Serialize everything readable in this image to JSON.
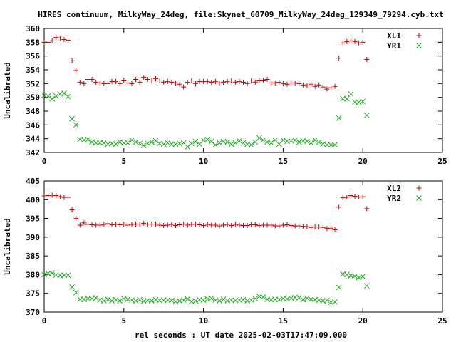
{
  "title": "HIRES continuum, MilkyWay_24deg, file:Skynet_60709_MilkyWay_24deg_129349_79294.cyb.txt",
  "xlabel": "rel seconds : UT date 2025-02-03T17:47:09.000",
  "colors": {
    "series1": "#cc0000",
    "series2": "#22aa22",
    "axis": "#000000"
  },
  "chart_data": [
    {
      "type": "scatter",
      "ylabel": "Uncalibrated",
      "xlim": [
        0,
        25
      ],
      "ylim": [
        342,
        360
      ],
      "xticks": [
        0,
        5,
        10,
        15,
        20,
        25
      ],
      "yticks": [
        342,
        344,
        346,
        348,
        350,
        352,
        354,
        356,
        358,
        360
      ],
      "legend": "top-right",
      "series": [
        {
          "name": "XL1",
          "marker": "plus",
          "x": [
            0.0,
            0.25,
            0.5,
            0.75,
            1.0,
            1.25,
            1.5,
            1.75,
            2.0,
            2.25,
            2.5,
            2.75,
            3.0,
            3.25,
            3.5,
            3.75,
            4.0,
            4.25,
            4.5,
            4.75,
            5.0,
            5.25,
            5.5,
            5.75,
            6.0,
            6.25,
            6.5,
            6.75,
            7.0,
            7.25,
            7.5,
            7.75,
            8.0,
            8.25,
            8.5,
            8.75,
            9.0,
            9.25,
            9.5,
            9.75,
            10.0,
            10.25,
            10.5,
            10.75,
            11.0,
            11.25,
            11.5,
            11.75,
            12.0,
            12.25,
            12.5,
            12.75,
            13.0,
            13.25,
            13.5,
            13.75,
            14.0,
            14.25,
            14.5,
            14.75,
            15.0,
            15.25,
            15.5,
            15.75,
            16.0,
            16.25,
            16.5,
            16.75,
            17.0,
            17.25,
            17.5,
            17.75,
            18.0,
            18.25,
            18.5,
            18.75,
            19.0,
            19.25,
            19.5,
            19.75,
            20.0,
            20.25
          ],
          "y": [
            358.0,
            358.0,
            358.2,
            358.7,
            358.6,
            358.4,
            358.3,
            355.3,
            353.9,
            352.2,
            352.0,
            352.6,
            352.6,
            352.2,
            352.1,
            352.0,
            352.0,
            352.3,
            352.3,
            352.0,
            352.5,
            352.1,
            352.0,
            352.6,
            352.2,
            352.9,
            352.6,
            352.4,
            352.7,
            352.4,
            352.2,
            352.3,
            352.2,
            352.1,
            351.9,
            351.5,
            352.2,
            352.4,
            352.0,
            352.3,
            352.3,
            352.3,
            352.2,
            352.3,
            352.1,
            352.2,
            352.3,
            352.4,
            352.2,
            352.3,
            352.2,
            352.0,
            352.4,
            352.2,
            352.5,
            352.5,
            352.6,
            352.1,
            352.1,
            352.2,
            352.0,
            351.9,
            352.1,
            352.1,
            352.0,
            351.8,
            351.7,
            351.9,
            351.6,
            351.8,
            351.5,
            351.2,
            351.4,
            351.6,
            355.7,
            357.9,
            358.1,
            358.2,
            358.1,
            357.9,
            358.0,
            355.5
          ]
        },
        {
          "name": "YR1",
          "marker": "cross",
          "x": [
            0.0,
            0.25,
            0.5,
            0.75,
            1.0,
            1.25,
            1.5,
            1.75,
            2.0,
            2.25,
            2.5,
            2.75,
            3.0,
            3.25,
            3.5,
            3.75,
            4.0,
            4.25,
            4.5,
            4.75,
            5.0,
            5.25,
            5.5,
            5.75,
            6.0,
            6.25,
            6.5,
            6.75,
            7.0,
            7.25,
            7.5,
            7.75,
            8.0,
            8.25,
            8.5,
            8.75,
            9.0,
            9.25,
            9.5,
            9.75,
            10.0,
            10.25,
            10.5,
            10.75,
            11.0,
            11.25,
            11.5,
            11.75,
            12.0,
            12.25,
            12.5,
            12.75,
            13.0,
            13.25,
            13.5,
            13.75,
            14.0,
            14.25,
            14.5,
            14.75,
            15.0,
            15.25,
            15.5,
            15.75,
            16.0,
            16.25,
            16.5,
            16.75,
            17.0,
            17.25,
            17.5,
            17.75,
            18.0,
            18.25,
            18.5,
            18.75,
            19.0,
            19.25,
            19.5,
            19.75,
            20.0,
            20.25
          ],
          "y": [
            350.3,
            350.2,
            349.8,
            350.2,
            350.5,
            350.6,
            350.1,
            346.9,
            346.0,
            343.9,
            343.8,
            343.9,
            343.5,
            343.4,
            343.4,
            343.4,
            343.2,
            343.3,
            343.2,
            343.5,
            343.4,
            343.4,
            343.8,
            343.5,
            343.3,
            343.0,
            343.3,
            343.5,
            343.7,
            343.3,
            343.2,
            343.4,
            343.2,
            343.2,
            343.3,
            343.4,
            342.8,
            343.3,
            343.6,
            343.2,
            343.8,
            343.9,
            343.6,
            343.1,
            343.4,
            343.6,
            343.5,
            343.2,
            343.4,
            343.7,
            343.4,
            343.2,
            343.1,
            343.5,
            344.1,
            343.8,
            343.5,
            343.4,
            343.8,
            343.2,
            343.8,
            343.6,
            343.7,
            343.8,
            343.5,
            343.7,
            343.6,
            343.4,
            343.8,
            343.5,
            343.2,
            343.1,
            343.1,
            343.1,
            347.0,
            349.8,
            349.8,
            350.5,
            349.3,
            349.3,
            349.4,
            347.4
          ]
        }
      ]
    },
    {
      "type": "scatter",
      "ylabel": "Uncalibrated",
      "xlim": [
        0,
        25
      ],
      "ylim": [
        370,
        405
      ],
      "xticks": [
        0,
        5,
        10,
        15,
        20,
        25
      ],
      "yticks": [
        370,
        375,
        380,
        385,
        390,
        395,
        400,
        405
      ],
      "legend": "top-right",
      "series": [
        {
          "name": "XL2",
          "marker": "plus",
          "x": [
            0.0,
            0.25,
            0.5,
            0.75,
            1.0,
            1.25,
            1.5,
            1.75,
            2.0,
            2.25,
            2.5,
            2.75,
            3.0,
            3.25,
            3.5,
            3.75,
            4.0,
            4.25,
            4.5,
            4.75,
            5.0,
            5.25,
            5.5,
            5.75,
            6.0,
            6.25,
            6.5,
            6.75,
            7.0,
            7.25,
            7.5,
            7.75,
            8.0,
            8.25,
            8.5,
            8.75,
            9.0,
            9.25,
            9.5,
            9.75,
            10.0,
            10.25,
            10.5,
            10.75,
            11.0,
            11.25,
            11.5,
            11.75,
            12.0,
            12.25,
            12.5,
            12.75,
            13.0,
            13.25,
            13.5,
            13.75,
            14.0,
            14.25,
            14.5,
            14.75,
            15.0,
            15.25,
            15.5,
            15.75,
            16.0,
            16.25,
            16.5,
            16.75,
            17.0,
            17.25,
            17.5,
            17.75,
            18.0,
            18.25,
            18.5,
            18.75,
            19.0,
            19.25,
            19.5,
            19.75,
            20.0,
            20.25
          ],
          "y": [
            401.0,
            401.1,
            401.2,
            401.1,
            400.8,
            400.6,
            400.6,
            397.3,
            395.0,
            393.2,
            393.8,
            393.4,
            393.3,
            393.2,
            393.2,
            393.4,
            393.6,
            393.3,
            393.4,
            393.3,
            393.5,
            393.2,
            393.4,
            393.5,
            393.5,
            393.7,
            393.5,
            393.5,
            393.5,
            393.2,
            393.1,
            393.2,
            393.4,
            393.1,
            393.3,
            393.5,
            393.2,
            393.4,
            393.5,
            393.3,
            393.1,
            393.4,
            393.2,
            393.2,
            393.0,
            393.2,
            393.4,
            393.1,
            393.4,
            393.2,
            393.1,
            393.1,
            393.3,
            393.3,
            393.1,
            393.2,
            393.2,
            393.2,
            393.0,
            393.0,
            393.2,
            393.3,
            393.1,
            393.0,
            393.0,
            392.9,
            392.8,
            392.6,
            392.7,
            392.7,
            392.6,
            392.3,
            392.4,
            392.0,
            398.0,
            400.5,
            400.7,
            401.1,
            400.9,
            400.7,
            400.8,
            397.6
          ]
        },
        {
          "name": "YR2",
          "marker": "cross",
          "x": [
            0.0,
            0.25,
            0.5,
            0.75,
            1.0,
            1.25,
            1.5,
            1.75,
            2.0,
            2.25,
            2.5,
            2.75,
            3.0,
            3.25,
            3.5,
            3.75,
            4.0,
            4.25,
            4.5,
            4.75,
            5.0,
            5.25,
            5.5,
            5.75,
            6.0,
            6.25,
            6.5,
            6.75,
            7.0,
            7.25,
            7.5,
            7.75,
            8.0,
            8.25,
            8.5,
            8.75,
            9.0,
            9.25,
            9.5,
            9.75,
            10.0,
            10.25,
            10.5,
            10.75,
            11.0,
            11.25,
            11.5,
            11.75,
            12.0,
            12.25,
            12.5,
            12.75,
            13.0,
            13.25,
            13.5,
            13.75,
            14.0,
            14.25,
            14.5,
            14.75,
            15.0,
            15.25,
            15.5,
            15.75,
            16.0,
            16.25,
            16.5,
            16.75,
            17.0,
            17.25,
            17.5,
            17.75,
            18.0,
            18.25,
            18.5,
            18.75,
            19.0,
            19.25,
            19.5,
            19.75,
            20.0,
            20.25
          ],
          "y": [
            380.0,
            380.3,
            380.4,
            379.9,
            379.8,
            379.8,
            379.8,
            376.7,
            375.2,
            373.4,
            373.4,
            373.6,
            373.6,
            373.8,
            373.2,
            373.0,
            373.4,
            373.0,
            373.3,
            373.0,
            373.6,
            373.4,
            373.2,
            373.0,
            373.3,
            372.9,
            373.1,
            373.0,
            373.3,
            373.1,
            373.2,
            373.2,
            373.1,
            372.8,
            373.0,
            373.2,
            373.5,
            372.8,
            373.0,
            373.3,
            373.2,
            373.5,
            373.7,
            373.2,
            373.0,
            373.4,
            373.0,
            373.2,
            373.1,
            373.2,
            373.3,
            373.0,
            373.2,
            373.6,
            374.2,
            374.0,
            373.4,
            373.3,
            373.4,
            373.3,
            373.6,
            373.5,
            373.7,
            373.9,
            373.8,
            373.3,
            373.7,
            373.4,
            373.3,
            373.2,
            373.0,
            373.1,
            372.6,
            372.7,
            376.6,
            380.1,
            380.0,
            379.7,
            379.6,
            379.2,
            379.5,
            377.0
          ]
        }
      ]
    }
  ]
}
